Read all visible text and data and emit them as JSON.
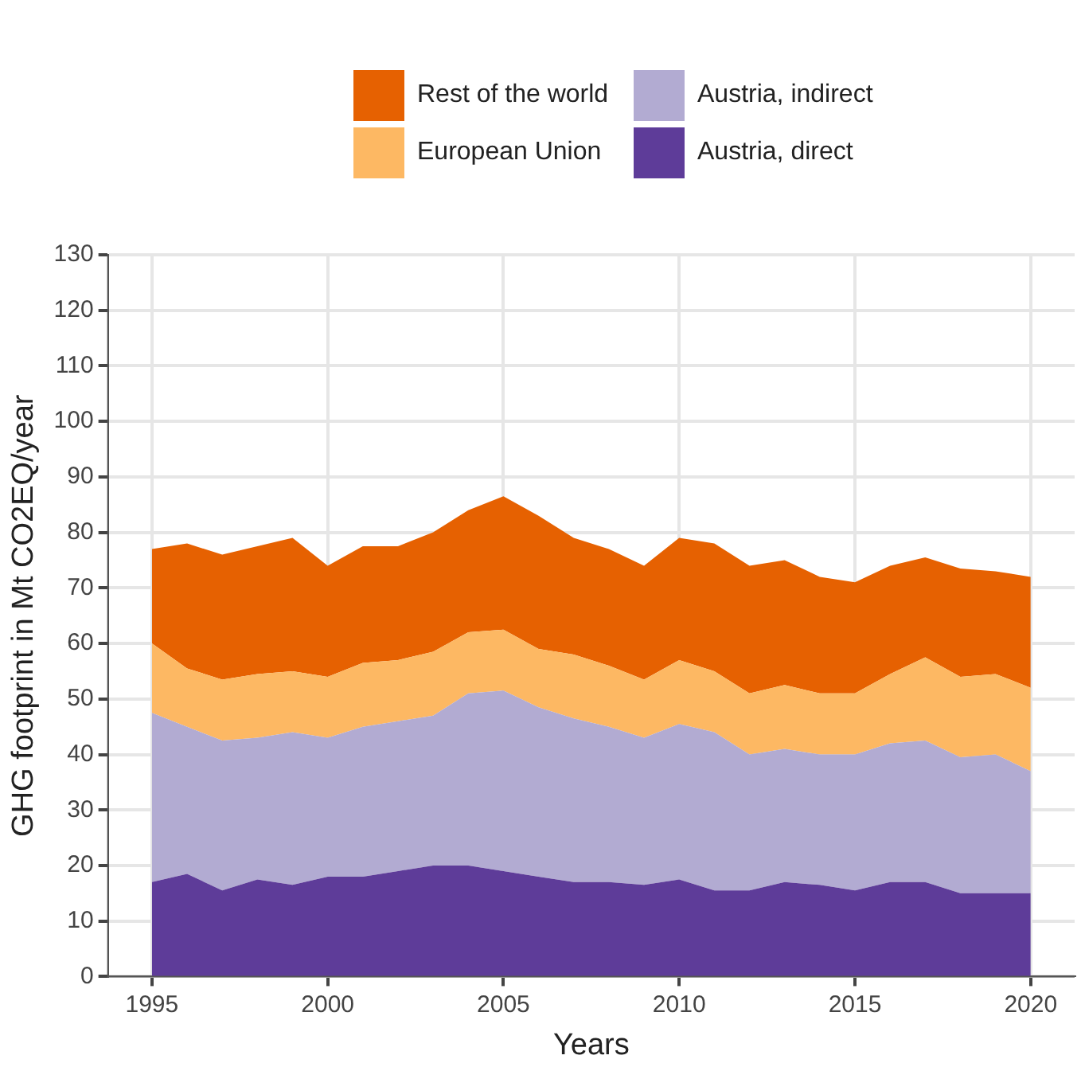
{
  "chart_data": {
    "type": "area",
    "stacked": true,
    "xlabel": "Years",
    "ylabel": "GHG footprint in Mt CO2EQ/year",
    "x": [
      1995,
      1996,
      1997,
      1998,
      1999,
      2000,
      2001,
      2002,
      2003,
      2004,
      2005,
      2006,
      2007,
      2008,
      2009,
      2010,
      2011,
      2012,
      2013,
      2014,
      2015,
      2016,
      2017,
      2018,
      2019,
      2020
    ],
    "series": [
      {
        "name": "Austria, direct",
        "color": "#5e3c99",
        "values": [
          17,
          18.5,
          15.5,
          17.5,
          16.5,
          18,
          18,
          19,
          20,
          20,
          19,
          18,
          17,
          17,
          16.5,
          17.5,
          15.5,
          15.5,
          17,
          16.5,
          15.5,
          17,
          17,
          15,
          15,
          15
        ]
      },
      {
        "name": "Austria, indirect",
        "color": "#b2abd2",
        "values": [
          30.5,
          26.5,
          27,
          25.5,
          27.5,
          25,
          27,
          27,
          27,
          31,
          32.5,
          30.5,
          29.5,
          28,
          26.5,
          28,
          28.5,
          24.5,
          24,
          23.5,
          24.5,
          25,
          25.5,
          24.5,
          25,
          22
        ]
      },
      {
        "name": "European Union",
        "color": "#fdb863",
        "values": [
          12.5,
          10.5,
          11,
          11.5,
          11,
          11,
          11.5,
          11,
          11.5,
          11,
          11,
          10.5,
          11.5,
          11,
          10.5,
          11.5,
          11,
          11,
          11.5,
          11,
          11,
          12.5,
          15,
          14.5,
          14.5,
          15
        ]
      },
      {
        "name": "Rest of the world",
        "color": "#e66101",
        "values": [
          17,
          22.5,
          22.5,
          23,
          24,
          20,
          21,
          20.5,
          21.5,
          22,
          24,
          24,
          21,
          21,
          20.5,
          22,
          23,
          23,
          22.5,
          21,
          20,
          19.5,
          18,
          19.5,
          18.5,
          20
        ]
      }
    ],
    "xlim": [
      1993.75,
      2021.25
    ],
    "xticks": [
      1995,
      2000,
      2005,
      2010,
      2015,
      2020
    ],
    "ylim": [
      0,
      130
    ],
    "yticks": [
      0,
      10,
      20,
      30,
      40,
      50,
      60,
      70,
      80,
      90,
      100,
      110,
      120,
      130
    ],
    "grid": true,
    "legend": "top"
  }
}
